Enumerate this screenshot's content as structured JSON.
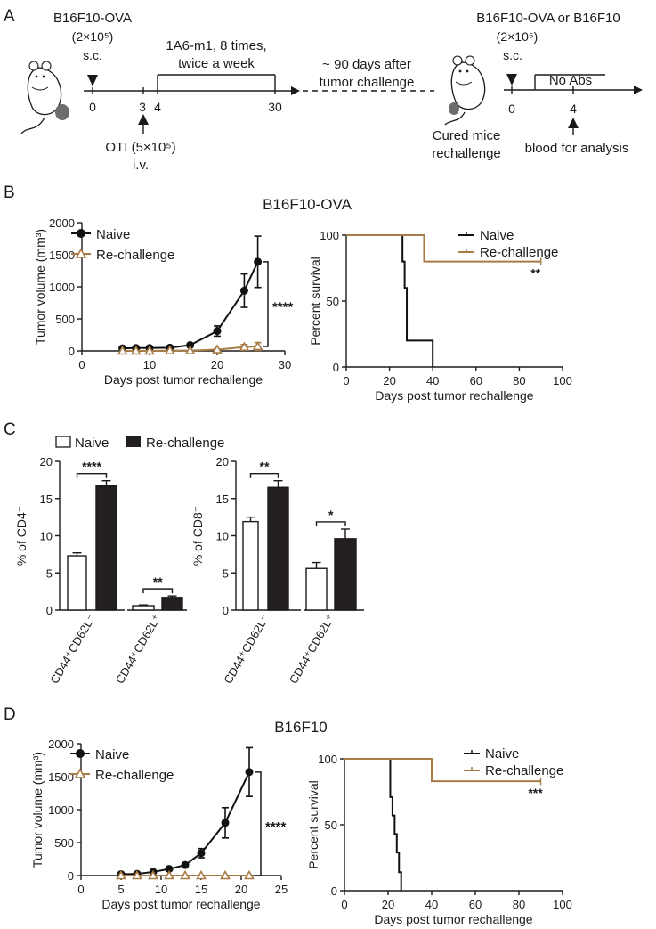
{
  "colors": {
    "naive": "#111111",
    "rechallenge": "#a97b45",
    "bar_fill": "#231f20",
    "text": "#1a1a1a"
  },
  "panel_a": {
    "label": "A",
    "left": {
      "tumor": "B16F10-OVA",
      "dose": "(2×10⁵)",
      "route": "s.c.",
      "treatment_line1": "1A6-m1, 8 times,",
      "treatment_line2": "twice a week",
      "ticks": [
        "0",
        "3",
        "4",
        "30"
      ],
      "oti_line1": "OTI (5×10⁵)",
      "oti_line2": "i.v."
    },
    "gap_line1": "~ 90 days after",
    "gap_line2": "tumor challenge",
    "cured_line1": "Cured mice",
    "cured_line2": "rechallenge",
    "right": {
      "tumor": "B16F10-OVA or B16F10",
      "dose": "(2×10⁵)",
      "route": "s.c.",
      "no_abs": "No Abs",
      "ticks": [
        "0",
        "4"
      ],
      "blood": "blood for analysis"
    }
  },
  "panel_b": {
    "label": "B",
    "title": "B16F10-OVA"
  },
  "panel_c": {
    "label": "C"
  },
  "panel_d": {
    "label": "D",
    "title": "B16F10"
  },
  "chart_data": [
    {
      "id": "b_volume",
      "panel": "B",
      "type": "line",
      "xlabel": "Days post tumor rechallenge",
      "ylabel": "Tumor volume (mm³)",
      "xlim": [
        0,
        30
      ],
      "ylim": [
        0,
        2000
      ],
      "xticks": [
        0,
        10,
        20,
        30
      ],
      "yticks": [
        0,
        500,
        1000,
        1500,
        2000
      ],
      "legend": [
        "Naive",
        "Re-challenge"
      ],
      "significance": "****",
      "series": [
        {
          "name": "Naive",
          "x": [
            6,
            8,
            10,
            13,
            16,
            20,
            24,
            26
          ],
          "y": [
            40,
            45,
            45,
            50,
            90,
            310,
            940,
            1390
          ],
          "err": [
            0,
            0,
            0,
            0,
            0,
            80,
            260,
            400
          ]
        },
        {
          "name": "Re-challenge",
          "x": [
            6,
            8,
            10,
            13,
            16,
            20,
            24,
            26
          ],
          "y": [
            0,
            0,
            0,
            5,
            5,
            20,
            60,
            70
          ],
          "err": [
            0,
            0,
            0,
            0,
            0,
            10,
            40,
            60
          ]
        }
      ]
    },
    {
      "id": "b_survival",
      "panel": "B",
      "type": "line",
      "xlabel": "Days post tumor rechallenge",
      "ylabel": "Percent survival",
      "xlim": [
        0,
        100
      ],
      "ylim": [
        0,
        100
      ],
      "xticks": [
        0,
        20,
        40,
        60,
        80,
        100
      ],
      "yticks": [
        0,
        50,
        100
      ],
      "legend": [
        "Naive",
        "Re-challenge"
      ],
      "significance": "**",
      "series": [
        {
          "name": "Naive",
          "x": [
            0,
            26,
            26,
            27,
            27,
            28,
            28,
            40,
            40
          ],
          "y": [
            100,
            100,
            80,
            80,
            60,
            60,
            20,
            20,
            0
          ]
        },
        {
          "name": "Re-challenge",
          "x": [
            0,
            36,
            36,
            90
          ],
          "y": [
            100,
            100,
            80,
            80
          ]
        }
      ]
    },
    {
      "id": "c_cd4",
      "panel": "C",
      "type": "bar",
      "ylabel": "% of CD4⁺",
      "ylim": [
        0,
        20
      ],
      "yticks": [
        0,
        5,
        10,
        15,
        20
      ],
      "categories": [
        "CD44⁺CD62L⁻",
        "CD44⁺CD62L⁺"
      ],
      "legend": [
        "Naive",
        "Re-challenge"
      ],
      "series": [
        {
          "name": "Naive",
          "values": [
            7.3,
            0.6
          ],
          "err": [
            0.4,
            0.1
          ]
        },
        {
          "name": "Re-challenge",
          "values": [
            16.7,
            1.7
          ],
          "err": [
            0.7,
            0.2
          ]
        }
      ],
      "significance": [
        "****",
        "**"
      ]
    },
    {
      "id": "c_cd8",
      "panel": "C",
      "type": "bar",
      "ylabel": "% of CD8⁺",
      "ylim": [
        0,
        20
      ],
      "yticks": [
        0,
        5,
        10,
        15,
        20
      ],
      "categories": [
        "CD44⁺CD62L⁻",
        "CD44⁺CD62L⁺"
      ],
      "series": [
        {
          "name": "Naive",
          "values": [
            11.9,
            5.6
          ],
          "err": [
            0.6,
            0.8
          ]
        },
        {
          "name": "Re-challenge",
          "values": [
            16.5,
            9.6
          ],
          "err": [
            0.9,
            1.3
          ]
        }
      ],
      "significance": [
        "**",
        "*"
      ]
    },
    {
      "id": "d_volume",
      "panel": "D",
      "type": "line",
      "xlabel": "Days post tumor rechallenge",
      "ylabel": "Tumor volume (mm³)",
      "xlim": [
        0,
        25
      ],
      "ylim": [
        0,
        2000
      ],
      "xticks": [
        0,
        5,
        10,
        15,
        20,
        25
      ],
      "yticks": [
        0,
        500,
        1000,
        1500,
        2000
      ],
      "legend": [
        "Naive",
        "Re-challenge"
      ],
      "significance": "****",
      "series": [
        {
          "name": "Naive",
          "x": [
            5,
            7,
            9,
            11,
            13,
            15,
            18,
            21
          ],
          "y": [
            20,
            25,
            55,
            100,
            160,
            340,
            800,
            1570
          ],
          "err": [
            0,
            0,
            0,
            0,
            20,
            70,
            230,
            370
          ]
        },
        {
          "name": "Re-challenge",
          "x": [
            5,
            7,
            9,
            11,
            13,
            15,
            18,
            21
          ],
          "y": [
            0,
            0,
            0,
            0,
            0,
            0,
            0,
            0
          ],
          "err": [
            0,
            0,
            0,
            0,
            0,
            0,
            0,
            0
          ]
        }
      ]
    },
    {
      "id": "d_survival",
      "panel": "D",
      "type": "line",
      "xlabel": "Days post tumor rechallenge",
      "ylabel": "Percent survival",
      "xlim": [
        0,
        100
      ],
      "ylim": [
        0,
        100
      ],
      "xticks": [
        0,
        20,
        40,
        60,
        80,
        100
      ],
      "yticks": [
        0,
        50,
        100
      ],
      "legend": [
        "Naive",
        "Re-challenge"
      ],
      "significance": "***",
      "series": [
        {
          "name": "Naive",
          "x": [
            0,
            21,
            21,
            22,
            22,
            23,
            23,
            24,
            24,
            25,
            25,
            26,
            26
          ],
          "y": [
            100,
            100,
            71,
            71,
            57,
            57,
            43,
            43,
            29,
            29,
            14,
            14,
            0
          ]
        },
        {
          "name": "Re-challenge",
          "x": [
            0,
            40,
            40,
            90
          ],
          "y": [
            100,
            100,
            83,
            83
          ]
        }
      ]
    }
  ]
}
